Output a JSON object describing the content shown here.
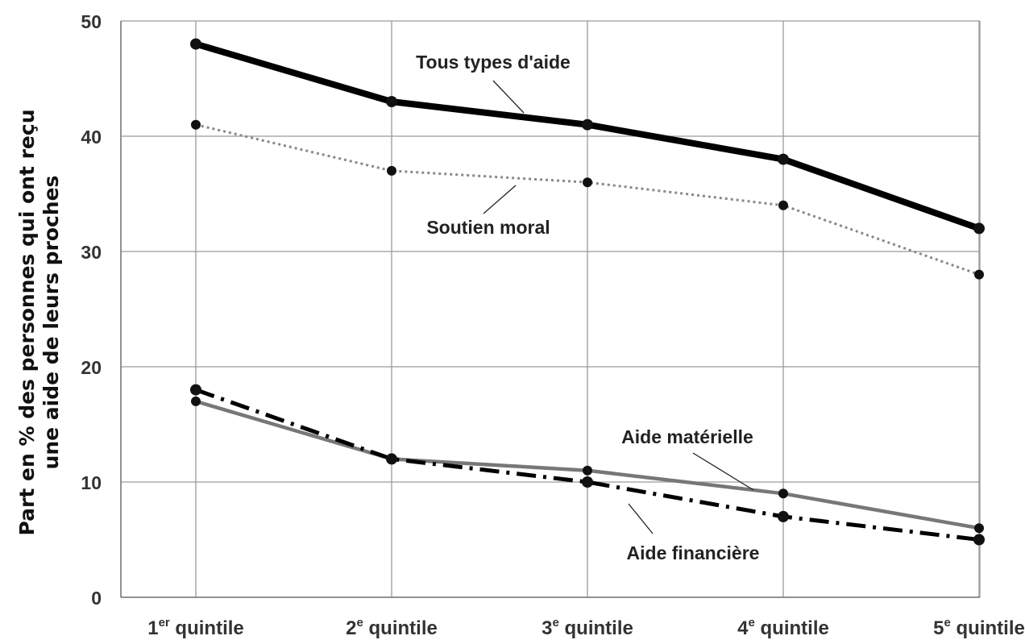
{
  "chart_data": {
    "type": "line",
    "categories": [
      {
        "main": "1",
        "sup": "er",
        "rest": " quintile"
      },
      {
        "main": "2",
        "sup": "e",
        "rest": " quintile"
      },
      {
        "main": "3",
        "sup": "e",
        "rest": " quintile"
      },
      {
        "main": "4",
        "sup": "e",
        "rest": " quintile"
      },
      {
        "main": "5",
        "sup": "e",
        "rest": " quintile"
      }
    ],
    "ylabel_line1": "Part en % des personnes qui ont reçu",
    "ylabel_line2": "une aide de leurs proches",
    "ylim": [
      0,
      50
    ],
    "yticks": [
      0,
      10,
      20,
      30,
      40,
      50
    ],
    "grid": true,
    "series": [
      {
        "name": "Tous types d'aide",
        "values": [
          48,
          43,
          41,
          38,
          32
        ],
        "color": "#000000",
        "style": "thick-solid"
      },
      {
        "name": "Soutien moral",
        "values": [
          41,
          37,
          36,
          34,
          28
        ],
        "color": "#888888",
        "style": "dotted"
      },
      {
        "name": "Aide matérielle",
        "values": [
          17,
          12,
          11,
          9,
          6
        ],
        "color": "#777777",
        "style": "solid"
      },
      {
        "name": "Aide financière",
        "values": [
          18,
          12,
          10,
          7,
          5
        ],
        "color": "#000000",
        "style": "dash-dot"
      }
    ],
    "annotations": [
      {
        "text": "Tous types d'aide",
        "series": 0
      },
      {
        "text": "Soutien moral",
        "series": 1
      },
      {
        "text": "Aide matérielle",
        "series": 2
      },
      {
        "text": "Aide financière",
        "series": 3
      }
    ]
  }
}
